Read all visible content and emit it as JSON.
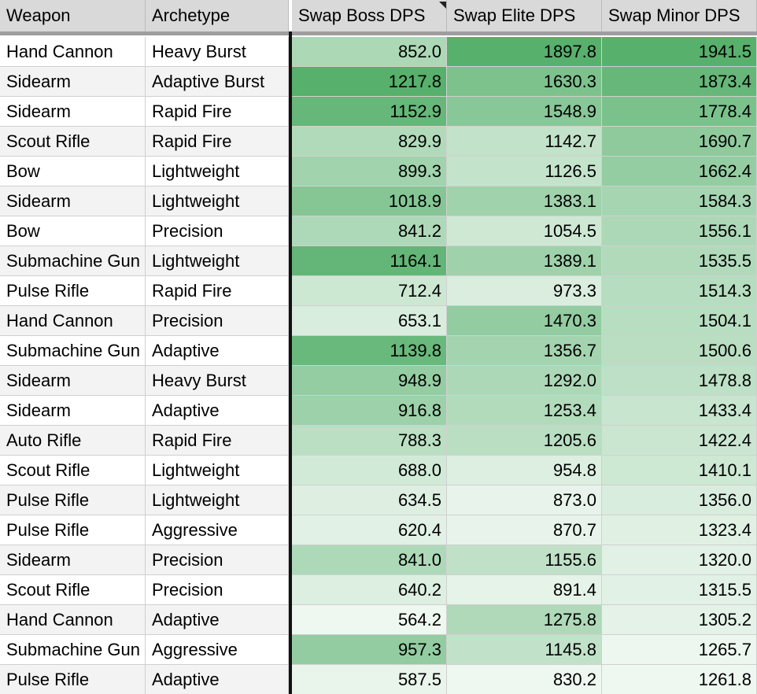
{
  "table": {
    "header": [
      "Weapon",
      "Archetype",
      "Swap Boss DPS",
      "Swap Elite DPS",
      "Swap Minor DPS"
    ],
    "rows": [
      [
        "Hand Cannon",
        "Heavy Burst",
        "852.0",
        "1897.8",
        "1941.5"
      ],
      [
        "Sidearm",
        "Adaptive Burst",
        "1217.8",
        "1630.3",
        "1873.4"
      ],
      [
        "Sidearm",
        "Rapid Fire",
        "1152.9",
        "1548.9",
        "1778.4"
      ],
      [
        "Scout Rifle",
        "Rapid Fire",
        "829.9",
        "1142.7",
        "1690.7"
      ],
      [
        "Bow",
        "Lightweight",
        "899.3",
        "1126.5",
        "1662.4"
      ],
      [
        "Sidearm",
        "Lightweight",
        "1018.9",
        "1383.1",
        "1584.3"
      ],
      [
        "Bow",
        "Precision",
        "841.2",
        "1054.5",
        "1556.1"
      ],
      [
        "Submachine Gun",
        "Lightweight",
        "1164.1",
        "1389.1",
        "1535.5"
      ],
      [
        "Pulse Rifle",
        "Rapid Fire",
        "712.4",
        "973.3",
        "1514.3"
      ],
      [
        "Hand Cannon",
        "Precision",
        "653.1",
        "1470.3",
        "1504.1"
      ],
      [
        "Submachine Gun",
        "Adaptive",
        "1139.8",
        "1356.7",
        "1500.6"
      ],
      [
        "Sidearm",
        "Heavy Burst",
        "948.9",
        "1292.0",
        "1478.8"
      ],
      [
        "Sidearm",
        "Adaptive",
        "916.8",
        "1253.4",
        "1433.4"
      ],
      [
        "Auto Rifle",
        "Rapid Fire",
        "788.3",
        "1205.6",
        "1422.4"
      ],
      [
        "Scout Rifle",
        "Lightweight",
        "688.0",
        "954.8",
        "1410.1"
      ],
      [
        "Pulse Rifle",
        "Lightweight",
        "634.5",
        "873.0",
        "1356.0"
      ],
      [
        "Pulse Rifle",
        "Aggressive",
        "620.4",
        "870.7",
        "1323.4"
      ],
      [
        "Sidearm",
        "Precision",
        "841.0",
        "1155.6",
        "1320.0"
      ],
      [
        "Scout Rifle",
        "Precision",
        "640.2",
        "891.4",
        "1315.5"
      ],
      [
        "Hand Cannon",
        "Adaptive",
        "564.2",
        "1275.8",
        "1305.2"
      ],
      [
        "Submachine Gun",
        "Aggressive",
        "957.3",
        "1145.8",
        "1265.7"
      ],
      [
        "Pulse Rifle",
        "Adaptive",
        "587.5",
        "830.2",
        "1261.8"
      ]
    ]
  }
}
